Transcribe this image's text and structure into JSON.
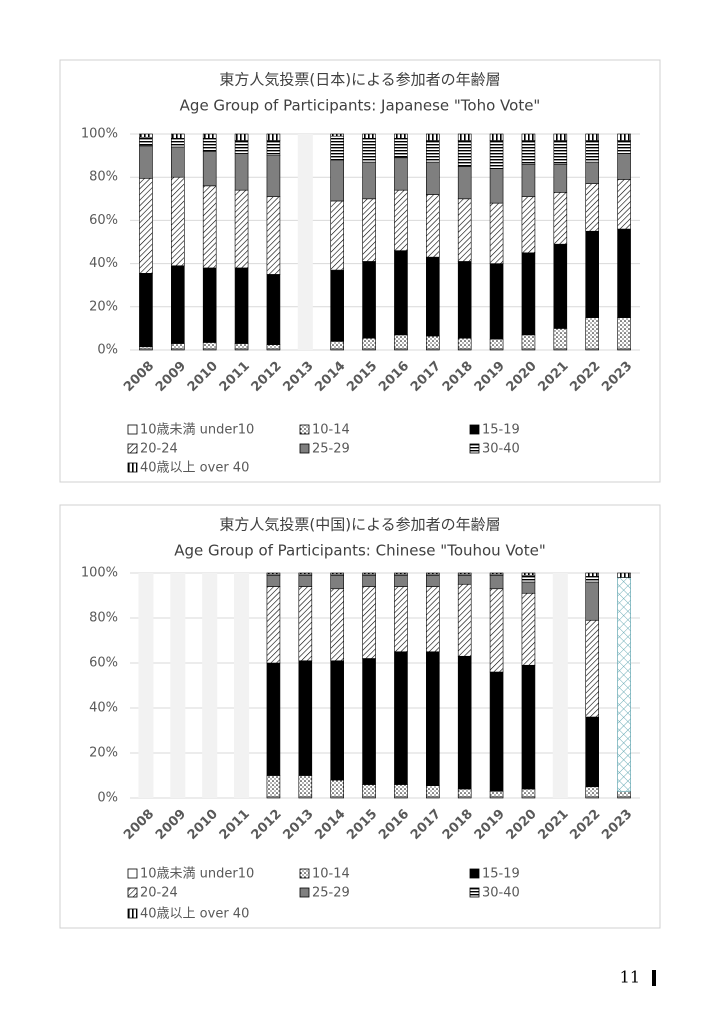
{
  "chart_data": [
    {
      "type": "stacked_bar",
      "title": "東方人気投票(日本)による参加者の年齢層",
      "subtitle": "Age Group of Participants: Japanese \"Toho Vote\"",
      "categories": [
        "2008",
        "2009",
        "2010",
        "2011",
        "2012",
        "2013",
        "2014",
        "2015",
        "2016",
        "2017",
        "2018",
        "2019",
        "2020",
        "2021",
        "2022",
        "2023"
      ],
      "series": [
        {
          "name": "10歳未満 under10",
          "color": "#ffffff",
          "pattern": "none",
          "values": [
            0.5,
            0.5,
            0.5,
            0.5,
            0.5,
            null,
            0.5,
            0.5,
            0.5,
            0.5,
            0.5,
            0.5,
            0.5,
            0.5,
            0.5,
            0.5
          ]
        },
        {
          "name": "10-14",
          "color": "#ffffff",
          "pattern": "dots",
          "values": [
            1,
            2.5,
            3,
            2.5,
            2,
            null,
            3.5,
            5,
            6.5,
            6,
            5,
            4.5,
            6.5,
            9.5,
            14.5,
            14.5
          ]
        },
        {
          "name": "15-19",
          "color": "#000000",
          "pattern": "none",
          "values": [
            34,
            36,
            34.5,
            35,
            32.5,
            null,
            33,
            35.5,
            39,
            36.5,
            35.5,
            35,
            38,
            39,
            40,
            41
          ]
        },
        {
          "name": "20-24",
          "color": "#ffffff",
          "pattern": "hatch",
          "values": [
            44,
            41,
            38,
            36,
            36,
            null,
            32,
            29,
            28,
            29,
            29,
            28,
            26,
            24,
            22,
            23
          ]
        },
        {
          "name": "25-29",
          "color": "#7f7f7f",
          "pattern": "none",
          "values": [
            15,
            14,
            16,
            17,
            19,
            null,
            19,
            17,
            15,
            15,
            15,
            16,
            15,
            13,
            10,
            12
          ]
        },
        {
          "name": "30-40",
          "color": "#ffffff",
          "pattern": "hstripe",
          "values": [
            4,
            4,
            6,
            6,
            7,
            null,
            11,
            11,
            9,
            10,
            12,
            13,
            11,
            11,
            10,
            6
          ]
        },
        {
          "name": "40歳以上 over 40",
          "color": "#ffffff",
          "pattern": "vstripe",
          "values": [
            1.5,
            2,
            2,
            3,
            3,
            null,
            1,
            2,
            2,
            3,
            3,
            3,
            3,
            3,
            3,
            3
          ]
        }
      ],
      "ylim": [
        0,
        100
      ],
      "yticks": [
        {
          "value": 0,
          "label": "0%"
        },
        {
          "value": 20,
          "label": "20%"
        },
        {
          "value": 40,
          "label": "40%"
        },
        {
          "value": 60,
          "label": "60%"
        },
        {
          "value": 80,
          "label": "80%"
        },
        {
          "value": 100,
          "label": "100%"
        }
      ],
      "grid": true
    },
    {
      "type": "stacked_bar",
      "title": "東方人気投票(中国)による参加者の年齢層",
      "subtitle": "Age Group of Participants: Chinese \"Touhou Vote\"",
      "categories": [
        "2008",
        "2009",
        "2010",
        "2011",
        "2012",
        "2013",
        "2014",
        "2015",
        "2016",
        "2017",
        "2018",
        "2019",
        "2020",
        "2021",
        "2022",
        "2023"
      ],
      "series": [
        {
          "name": "10歳未満 under10",
          "color": "#ffffff",
          "pattern": "none",
          "values": [
            null,
            null,
            null,
            null,
            0.5,
            0.5,
            0.5,
            0.5,
            0.5,
            0.5,
            0.5,
            0.5,
            0.5,
            null,
            0.5,
            0.5
          ]
        },
        {
          "name": "10-14",
          "color": "#ffffff",
          "pattern": "dots",
          "values": [
            null,
            null,
            null,
            null,
            9.5,
            9.5,
            7.5,
            5.5,
            5.5,
            5,
            3.5,
            2.5,
            3.5,
            null,
            4.5,
            2.5
          ]
        },
        {
          "name": "15-19",
          "color": "#000000",
          "pattern": "none",
          "values": [
            null,
            null,
            null,
            null,
            50,
            51,
            53,
            56,
            59,
            59.5,
            59,
            53,
            55,
            null,
            31,
            0
          ]
        },
        {
          "name": "20-24",
          "color": "#ffffff",
          "pattern": "hatch",
          "values": [
            null,
            null,
            null,
            null,
            34,
            33,
            32,
            32,
            29,
            29,
            32,
            37,
            32,
            null,
            43,
            0
          ]
        },
        {
          "name": "25-29",
          "color": "#7f7f7f",
          "pattern": "none",
          "values": [
            null,
            null,
            null,
            null,
            5,
            5,
            6,
            5,
            5,
            5,
            4,
            6,
            5,
            null,
            17,
            0
          ]
        },
        {
          "name": "30-40",
          "color": "#ffffff",
          "pattern": "hstripe",
          "values": [
            null,
            null,
            null,
            null,
            0.5,
            0.5,
            0.5,
            0.5,
            0.5,
            0.5,
            0.5,
            0.5,
            3,
            null,
            2.5,
            0
          ]
        },
        {
          "color": "#4a9aa6",
          "pattern": "cross",
          "values": [
            null,
            null,
            null,
            null,
            0,
            0,
            0,
            0,
            0,
            0,
            0,
            0,
            0,
            null,
            0,
            95
          ]
        },
        {
          "name": "40歳以上 over 40",
          "color": "#ffffff",
          "pattern": "vstripe",
          "values": [
            null,
            null,
            null,
            null,
            0.5,
            0.5,
            0.5,
            0.5,
            0.5,
            0.5,
            0.5,
            0.5,
            1,
            null,
            1.5,
            2
          ]
        }
      ],
      "ylim": [
        0,
        100
      ],
      "yticks": [
        {
          "value": 0,
          "label": "0%"
        },
        {
          "value": 20,
          "label": "20%"
        },
        {
          "value": 40,
          "label": "40%"
        },
        {
          "value": 60,
          "label": "60%"
        },
        {
          "value": 80,
          "label": "80%"
        },
        {
          "value": 100,
          "label": "100%"
        }
      ],
      "grid": true
    }
  ],
  "page_number": "11"
}
